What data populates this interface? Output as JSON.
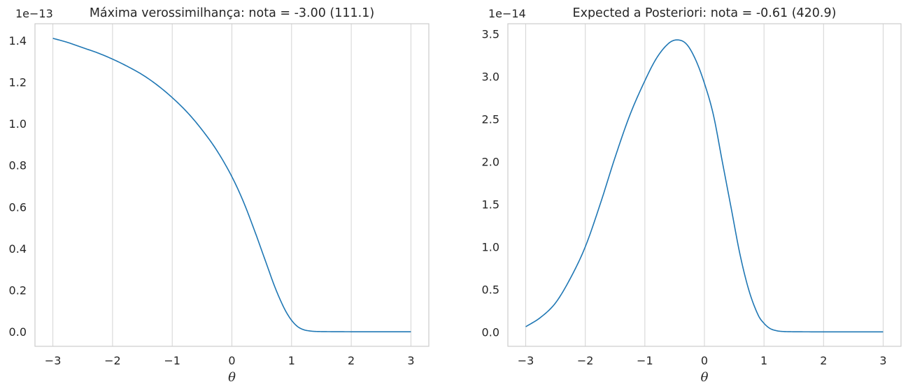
{
  "chart_data": [
    {
      "type": "line",
      "title": "Máxima verossimilhança: nota = -3.00 (111.1)",
      "xlabel": "θ",
      "ylabel": "",
      "offset_text": "1e−13",
      "xlim": [
        -3.3,
        3.3
      ],
      "ylim": [
        -0.07,
        1.48
      ],
      "xticks": [
        -3,
        -2,
        -1,
        0,
        1,
        2,
        3
      ],
      "xtick_labels": [
        "−3",
        "−2",
        "−1",
        "0",
        "1",
        "2",
        "3"
      ],
      "yticks": [
        0.0,
        0.2,
        0.4,
        0.6,
        0.8,
        1.0,
        1.2,
        1.4
      ],
      "ytick_labels": [
        "0.0",
        "0.2",
        "0.4",
        "0.6",
        "0.8",
        "1.0",
        "1.2",
        "1.4"
      ],
      "grid": "vertical",
      "series": [
        {
          "color": "#1f77b4",
          "x": [
            -3.0,
            -2.75,
            -2.5,
            -2.25,
            -2.0,
            -1.75,
            -1.5,
            -1.25,
            -1.0,
            -0.75,
            -0.5,
            -0.25,
            0.0,
            0.2,
            0.4,
            0.5,
            0.6,
            0.7,
            0.8,
            0.9,
            1.0,
            1.1,
            1.2,
            1.3,
            1.4,
            1.6,
            2.0,
            2.5,
            3.0
          ],
          "y": [
            1.41,
            1.39,
            1.365,
            1.34,
            1.31,
            1.275,
            1.235,
            1.185,
            1.125,
            1.055,
            0.97,
            0.87,
            0.745,
            0.62,
            0.47,
            0.39,
            0.31,
            0.23,
            0.16,
            0.1,
            0.055,
            0.025,
            0.01,
            0.004,
            0.0015,
            0.0005,
            0.0,
            0.0,
            0.0
          ]
        }
      ]
    },
    {
      "type": "line",
      "title": "Expected a Posteriori: nota = -0.61 (420.9)",
      "xlabel": "θ",
      "ylabel": "",
      "offset_text": "1e−14",
      "xlim": [
        -3.3,
        3.3
      ],
      "ylim": [
        -0.17,
        3.62
      ],
      "xticks": [
        -3,
        -2,
        -1,
        0,
        1,
        2,
        3
      ],
      "xtick_labels": [
        "−3",
        "−2",
        "−1",
        "0",
        "1",
        "2",
        "3"
      ],
      "yticks": [
        0.0,
        0.5,
        1.0,
        1.5,
        2.0,
        2.5,
        3.0,
        3.5
      ],
      "ytick_labels": [
        "0.0",
        "0.5",
        "1.0",
        "1.5",
        "2.0",
        "2.5",
        "3.0",
        "3.5"
      ],
      "grid": "vertical",
      "series": [
        {
          "color": "#1f77b4",
          "x": [
            -3.0,
            -2.75,
            -2.5,
            -2.25,
            -2.0,
            -1.75,
            -1.5,
            -1.25,
            -1.0,
            -0.8,
            -0.6,
            -0.45,
            -0.3,
            -0.15,
            0.0,
            0.15,
            0.3,
            0.45,
            0.6,
            0.75,
            0.9,
            1.0,
            1.1,
            1.2,
            1.3,
            1.5,
            2.0,
            2.5,
            3.0
          ],
          "y": [
            0.06,
            0.17,
            0.34,
            0.63,
            1.0,
            1.5,
            2.05,
            2.55,
            2.95,
            3.22,
            3.39,
            3.43,
            3.38,
            3.2,
            2.92,
            2.55,
            2.0,
            1.45,
            0.9,
            0.48,
            0.2,
            0.1,
            0.04,
            0.015,
            0.005,
            0.001,
            0.0,
            0.0,
            0.0
          ]
        }
      ]
    }
  ]
}
